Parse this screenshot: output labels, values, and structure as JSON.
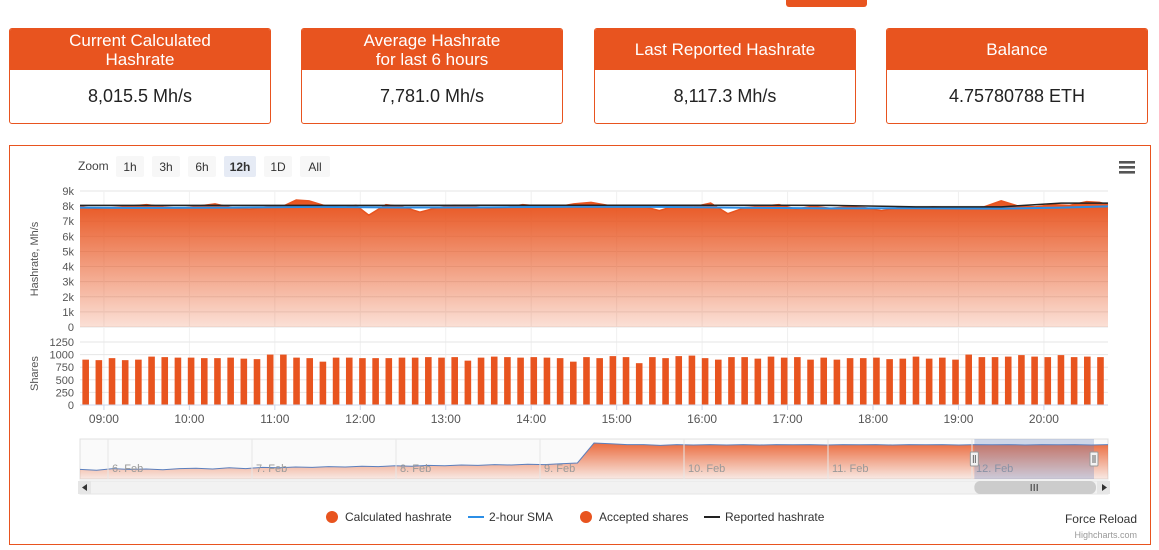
{
  "stats": [
    {
      "title": "Current Calculated\nHashrate",
      "value": "8,015.5 Mh/s"
    },
    {
      "title": "Average Hashrate\nfor last 6 hours",
      "value": "7,781.0 Mh/s"
    },
    {
      "title": "Last Reported Hashrate",
      "value": "8,117.3 Mh/s"
    },
    {
      "title": "Balance",
      "value": "4.75780788 ETH"
    }
  ],
  "colors": {
    "accent": "#e8541f",
    "sma": "#2b8ee6",
    "reported": "#222222"
  },
  "toolbar": {
    "zoom_label": "Zoom",
    "zoom_buttons": [
      "1h",
      "3h",
      "6h",
      "12h",
      "1D",
      "All"
    ],
    "selected": "12h",
    "menu_icon": "hamburger-menu-icon"
  },
  "force_reload": "Force Reload",
  "credit": "Highcharts.com",
  "chart_data": [
    {
      "type": "area",
      "ylabel": "Hashrate, Mh/s",
      "ylim": [
        0,
        9000
      ],
      "yticks": [
        "0",
        "1k",
        "2k",
        "3k",
        "4k",
        "5k",
        "6k",
        "7k",
        "8k",
        "9k"
      ],
      "xlim": [
        8.72,
        20.75
      ],
      "xticks": [
        "09:00",
        "10:00",
        "11:00",
        "12:00",
        "13:00",
        "14:00",
        "15:00",
        "16:00",
        "17:00",
        "18:00",
        "19:00",
        "20:00"
      ],
      "grid": true,
      "series": [
        {
          "name": "Calculated hashrate",
          "x": [
            8.72,
            8.9,
            9.1,
            9.3,
            9.5,
            9.7,
            9.9,
            10.1,
            10.3,
            10.5,
            10.7,
            10.9,
            11.1,
            11.25,
            11.4,
            11.6,
            11.8,
            11.95,
            12.1,
            12.3,
            12.5,
            12.7,
            12.9,
            13.1,
            13.3,
            13.5,
            13.7,
            13.9,
            14.1,
            14.3,
            14.5,
            14.7,
            14.9,
            15.1,
            15.3,
            15.5,
            15.7,
            15.9,
            16.1,
            16.3,
            16.5,
            16.7,
            16.9,
            17.1,
            17.3,
            17.5,
            17.7,
            17.9,
            18.1,
            18.3,
            18.5,
            18.7,
            18.9,
            19.1,
            19.3,
            19.5,
            19.7,
            19.9,
            20.1,
            20.3,
            20.5,
            20.65,
            20.75
          ],
          "values": [
            8000,
            7800,
            7900,
            8000,
            8100,
            7950,
            7850,
            8000,
            8150,
            7900,
            7800,
            7950,
            8000,
            8400,
            8350,
            8000,
            7900,
            8050,
            7400,
            8100,
            7950,
            7600,
            7900,
            8050,
            8000,
            7850,
            7900,
            8100,
            8000,
            7950,
            8150,
            8250,
            8050,
            7900,
            8000,
            7700,
            8050,
            7950,
            8200,
            7500,
            7900,
            8000,
            8100,
            7800,
            8000,
            7850,
            7950,
            7900,
            7700,
            7900,
            7850,
            7950,
            7900,
            7850,
            7950,
            8350,
            8000,
            7950,
            8100,
            8050,
            8300,
            8250,
            8100
          ]
        },
        {
          "name": "2-hour SMA",
          "x": [
            8.72,
            9.5,
            10.5,
            11.5,
            12.5,
            13.5,
            14.5,
            15.5,
            16.5,
            17.5,
            18.5,
            19.5,
            20.2,
            20.75
          ],
          "values": [
            7900,
            7880,
            7900,
            7950,
            7910,
            7920,
            7960,
            7950,
            7890,
            7850,
            7860,
            7830,
            7900,
            7980
          ]
        },
        {
          "name": "Reported hashrate",
          "x": [
            8.72,
            9.5,
            10.5,
            11.5,
            12.5,
            13.5,
            14.5,
            15.5,
            16.5,
            17.5,
            18.5,
            19.5,
            20.2,
            20.75
          ],
          "values": [
            8050,
            8050,
            8050,
            8050,
            8050,
            8060,
            8060,
            8060,
            8060,
            8050,
            7950,
            7950,
            8200,
            8200
          ]
        }
      ],
      "legend": "bottom-center"
    },
    {
      "type": "bar",
      "series_name": "Accepted shares",
      "ylabel": "Shares",
      "ylim": [
        0,
        1250
      ],
      "yticks": [
        "0",
        "250",
        "500",
        "750",
        "1000",
        "1250"
      ],
      "values": [
        900,
        890,
        930,
        890,
        900,
        960,
        950,
        940,
        940,
        930,
        930,
        940,
        920,
        910,
        1000,
        1000,
        940,
        930,
        860,
        940,
        940,
        930,
        930,
        930,
        940,
        940,
        950,
        940,
        950,
        880,
        940,
        960,
        950,
        940,
        950,
        940,
        930,
        860,
        950,
        930,
        970,
        950,
        830,
        950,
        930,
        970,
        980,
        930,
        900,
        950,
        950,
        920,
        960,
        940,
        950,
        900,
        940,
        900,
        930,
        930,
        940,
        910,
        920,
        960,
        920,
        940,
        900,
        1000,
        950,
        950,
        960,
        990,
        960,
        950,
        990,
        950,
        960,
        950
      ],
      "legend": "bottom-center"
    },
    {
      "type": "area",
      "role": "navigator",
      "xticks": [
        "6. Feb",
        "7. Feb",
        "8. Feb",
        "9. Feb",
        "10. Feb",
        "11. Feb",
        "12. Feb"
      ],
      "values": [
        1200,
        1100,
        1300,
        1200,
        1250,
        1150,
        1300,
        1350,
        1250,
        1400,
        1300,
        1450,
        1400,
        1500,
        1450,
        1550,
        1500,
        1600,
        1550,
        1650,
        1600,
        1700,
        1650,
        1750,
        1700,
        1800,
        1750,
        1850,
        1800,
        1900,
        2000,
        4500,
        4400,
        4300,
        4300,
        4200,
        4300,
        4250,
        4300,
        4250,
        4300,
        4250,
        4300,
        4280,
        4300,
        4250,
        4300,
        4280,
        4300,
        4250,
        4300,
        4280,
        4300,
        4250,
        4300,
        4280,
        4300,
        4250,
        4300,
        4280,
        4300,
        4250,
        4300
      ],
      "window": [
        0.87,
        1.0
      ]
    }
  ]
}
